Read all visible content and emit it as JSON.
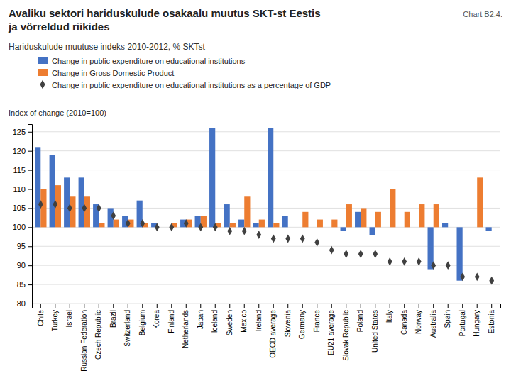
{
  "chart_data": {
    "type": "bar",
    "title": [
      "Avaliku sektori hariduskulude osakaalu muutus SKT-st Eestis",
      "ja vörreldud riikides"
    ],
    "subtitle": "Hariduskulude muutuse indeks 2010-2012, % SKTst",
    "annotations": [
      "Chart B2.4."
    ],
    "y_label": "Index of change (2010=100)",
    "categories": [
      "Chile",
      "Turkey",
      "Israel",
      "Russian Federation",
      "Czech Republic",
      "Brazil",
      "Switzerland",
      "Belgium",
      "Korea",
      "Finland",
      "Netherlands",
      "Japan",
      "Iceland",
      "Sweden",
      "Mexico",
      "Ireland",
      "OECD average",
      "Slovenia",
      "Germany",
      "France",
      "EU21 average",
      "Slovak Republic",
      "Poland",
      "United States",
      "Italy",
      "Canada",
      "Norway",
      "Australia",
      "Spain",
      "Portugal",
      "Hungary",
      "Estonia"
    ],
    "series": [
      {
        "name": "Change in public expenditure on educational institutions",
        "type": "bar",
        "color": "#4472c4",
        "base": 100,
        "values": [
          121,
          119,
          113,
          113,
          106,
          105,
          103,
          107,
          101,
          100,
          102,
          103,
          126,
          106,
          102,
          101,
          126,
          103,
          100,
          100,
          100,
          99,
          104,
          98,
          100,
          100,
          100,
          89,
          101,
          86,
          100,
          99
        ]
      },
      {
        "name": "Change in Gross Domestic Product",
        "type": "bar",
        "color": "#ed7d31",
        "base": 100,
        "values": [
          110,
          111,
          108,
          108,
          101,
          102,
          102,
          101,
          100,
          101,
          102,
          103,
          101,
          101,
          108,
          102,
          101,
          100,
          104,
          102,
          102,
          106,
          105,
          104,
          110,
          104,
          106,
          106,
          100,
          100,
          113,
          100
        ]
      },
      {
        "name": "Change in public expenditure on educational institutions as a percentage of GDP",
        "type": "scatter",
        "marker": "diamond",
        "color": "#404040",
        "values": [
          106,
          106,
          105,
          105,
          105,
          103,
          101,
          101,
          100,
          100,
          101,
          100,
          100,
          99,
          99,
          98,
          97,
          97,
          97,
          96,
          94,
          93,
          93,
          93,
          91,
          91,
          91,
          90,
          90,
          87,
          87,
          86
        ]
      }
    ],
    "ylim": [
      80,
      127
    ],
    "yticks": [
      80,
      85,
      90,
      95,
      100,
      105,
      110,
      115,
      120,
      125
    ],
    "grid": true,
    "legend": "top-left"
  }
}
